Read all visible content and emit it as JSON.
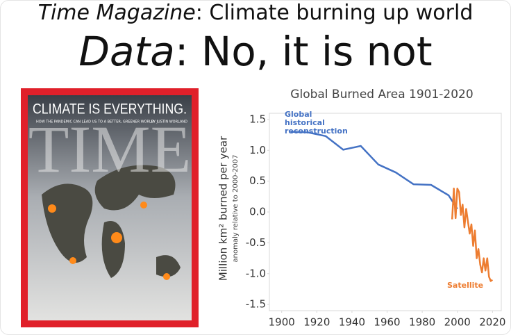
{
  "headline": {
    "line1_italic": "Time Magazine",
    "line1_rest": ": Climate burning up world",
    "line2_italic": "Data",
    "line2_rest": ": No, it is not"
  },
  "cover": {
    "headline": "CLIMATE IS EVERYTHING.",
    "subhead": "HOW THE PANDEMIC CAN LEAD US TO A BETTER, GREENER WORLD",
    "byline": "BY JUSTIN WORLAND",
    "masthead": "TIME"
  },
  "chart_data": {
    "type": "line",
    "title": "Global Burned Area 1901-2020",
    "ylabel": "Million km² burned per year",
    "ysublabel": "anomaly relative to 2000-2007",
    "xlim": [
      1893,
      2025
    ],
    "xticks": [
      1900,
      1920,
      1940,
      1960,
      1980,
      2000,
      2020
    ],
    "ylim": [
      -1.6,
      1.6
    ],
    "yticks": [
      1.5,
      {
        "value": 1,
        "label": "1.0"
      },
      0.5,
      {
        "value": 0,
        "label": "0.0"
      },
      -0.5,
      {
        "value": -1,
        "label": "-1.0"
      },
      -1.5
    ],
    "grid": false,
    "series": [
      {
        "name": "Global historical reconstruction",
        "color": "#4472c4",
        "x": [
          1905,
          1915,
          1925,
          1935,
          1945,
          1955,
          1965,
          1975,
          1985,
          1995,
          2000
        ],
        "values": [
          1.3,
          1.29,
          1.23,
          1.01,
          1.07,
          0.77,
          0.64,
          0.45,
          0.44,
          0.27,
          0.05
        ]
      },
      {
        "name": "Satellite",
        "color": "#ed7d31",
        "x": [
          1997,
          1998,
          1999,
          2000,
          2001,
          2002,
          2003,
          2004,
          2005,
          2006,
          2007,
          2008,
          2009,
          2010,
          2011,
          2012,
          2013,
          2014,
          2015,
          2016,
          2017,
          2018,
          2019,
          2020
        ],
        "values": [
          -0.12,
          0.38,
          -0.1,
          0.38,
          0.32,
          -0.05,
          0.12,
          -0.25,
          0.05,
          -0.15,
          -0.35,
          -0.2,
          -0.55,
          -0.3,
          -0.75,
          -0.6,
          -0.85,
          -0.98,
          -0.75,
          -0.95,
          -0.75,
          -1.05,
          -1.12,
          -1.1
        ]
      }
    ]
  }
}
